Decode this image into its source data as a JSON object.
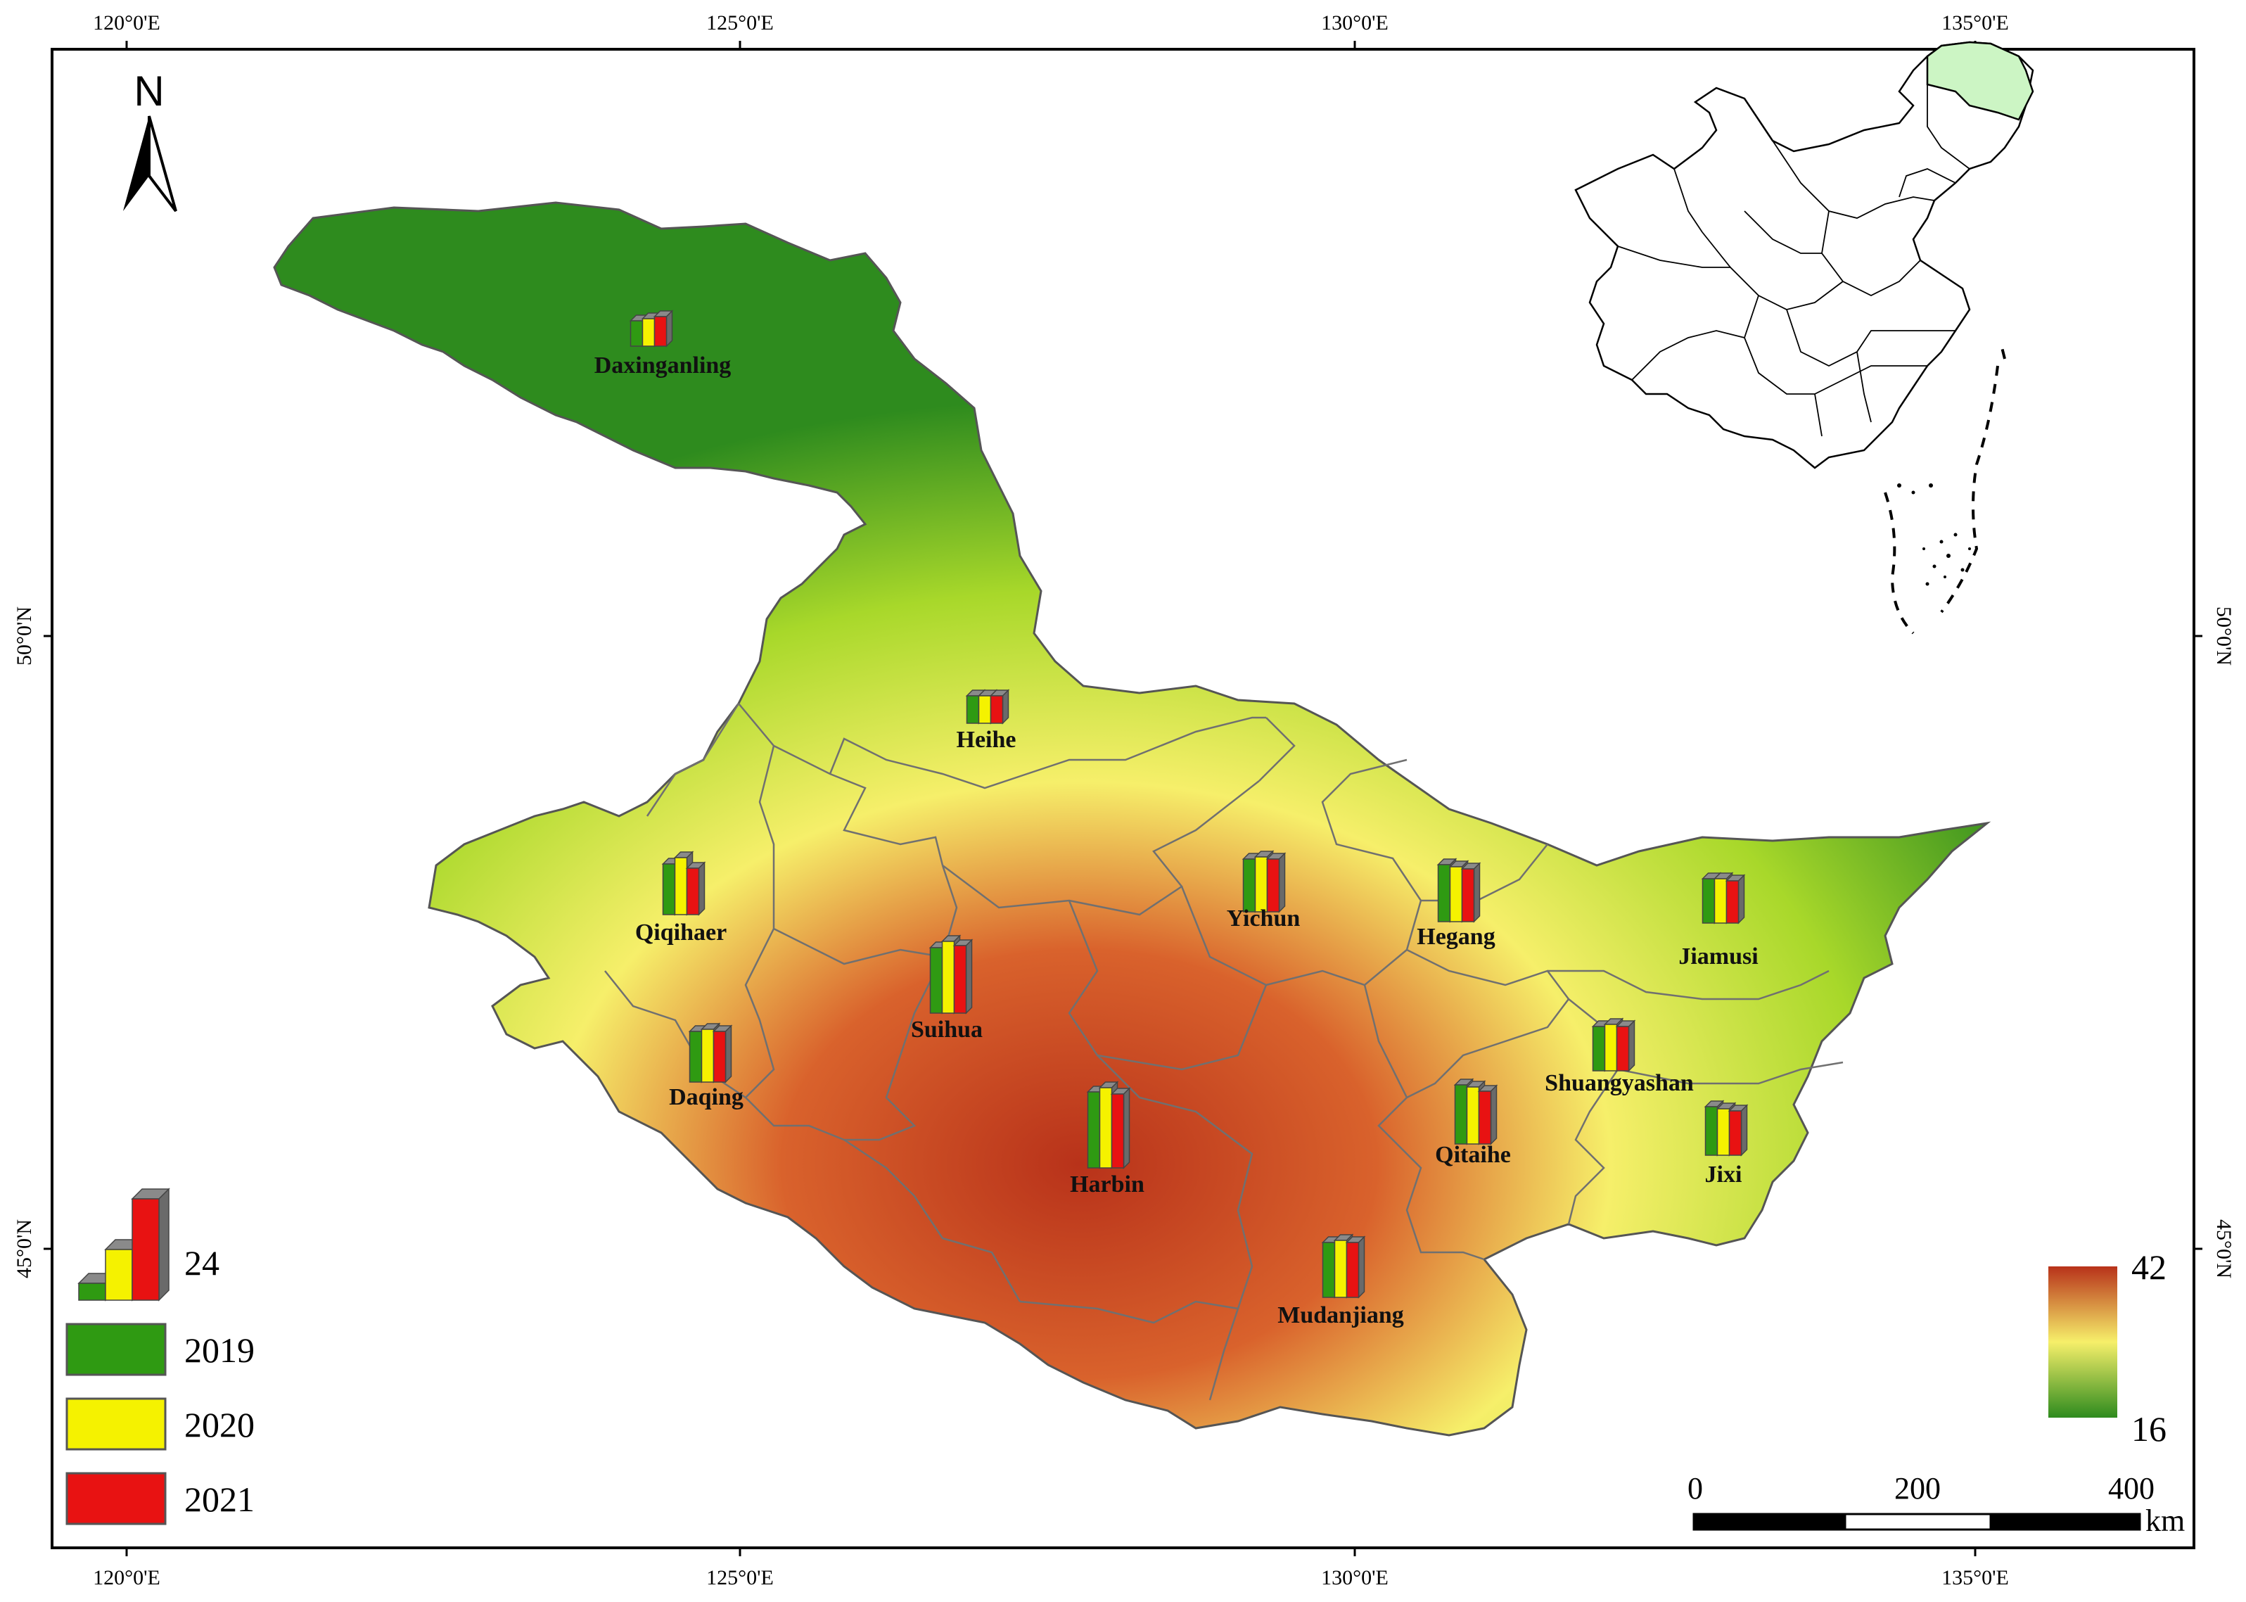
{
  "graticule": {
    "lon_labels": [
      "120°0'E",
      "125°0'E",
      "130°0'E",
      "135°0'E"
    ],
    "lat_labels": [
      "50°0'N",
      "45°0'N"
    ]
  },
  "north_arrow": {
    "label": "N"
  },
  "colors": {
    "y2019": "#2f9a12",
    "y2020": "#f5f200",
    "y2021": "#e81212",
    "surface_low": "#2e8b1e",
    "surface_mid": "#f6ef6a",
    "surface_high": "#b8321a",
    "inset_highlight": "#ccf5c4"
  },
  "cities": [
    {
      "name": "Daxinganling",
      "v2019": 12,
      "v2020": 13,
      "v2021": 14
    },
    {
      "name": "Heihe",
      "v2019": 13,
      "v2020": 13,
      "v2021": 13
    },
    {
      "name": "Qiqihaer",
      "v2019": 24,
      "v2020": 27,
      "v2021": 22
    },
    {
      "name": "Yichun",
      "v2019": 25,
      "v2020": 26,
      "v2021": 25
    },
    {
      "name": "Hegang",
      "v2019": 27,
      "v2020": 26,
      "v2021": 25
    },
    {
      "name": "Jiamusi",
      "v2019": 21,
      "v2020": 21,
      "v2021": 20
    },
    {
      "name": "Suihua",
      "v2019": 31,
      "v2020": 34,
      "v2021": 32
    },
    {
      "name": "Daqing",
      "v2019": 24,
      "v2020": 25,
      "v2021": 24
    },
    {
      "name": "Shuangyashan",
      "v2019": 21,
      "v2020": 22,
      "v2021": 21
    },
    {
      "name": "Harbin",
      "v2019": 36,
      "v2020": 38,
      "v2021": 35
    },
    {
      "name": "Qitaihe",
      "v2019": 28,
      "v2020": 27,
      "v2021": 25
    },
    {
      "name": "Jixi",
      "v2019": 23,
      "v2020": 22,
      "v2021": 21
    },
    {
      "name": "Mudanjiang",
      "v2019": 26,
      "v2020": 27,
      "v2021": 26
    }
  ],
  "legend": {
    "reference_value": "24",
    "years": [
      {
        "label": "2019",
        "key": "y2019"
      },
      {
        "label": "2020",
        "key": "y2020"
      },
      {
        "label": "2021",
        "key": "y2021"
      }
    ]
  },
  "colorbar": {
    "max_label": "42",
    "min_label": "16"
  },
  "scale_bar": {
    "labels": [
      "0",
      "200",
      "400"
    ],
    "unit": "km"
  }
}
